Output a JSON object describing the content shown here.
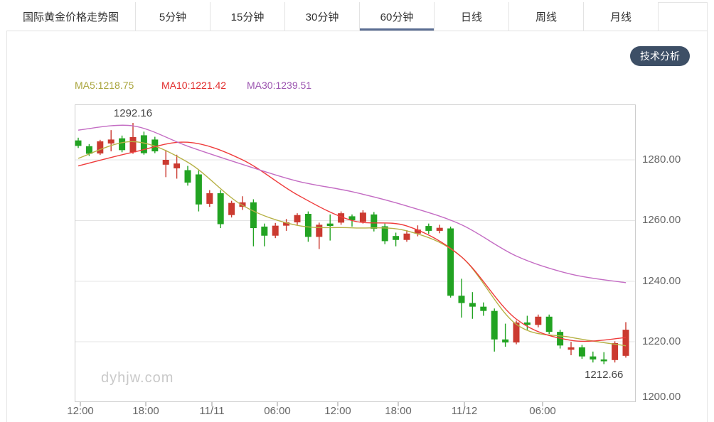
{
  "tabbar": {
    "title_tab": {
      "label": "国际黄金价格走势图"
    },
    "tabs": [
      {
        "label": "5分钟",
        "active": false
      },
      {
        "label": "15分钟",
        "active": false
      },
      {
        "label": "30分钟",
        "active": false
      },
      {
        "label": "60分钟",
        "active": true
      },
      {
        "label": "日线",
        "active": false
      },
      {
        "label": "周线",
        "active": false
      },
      {
        "label": "月线",
        "active": false
      }
    ],
    "active_underline_color": "#5a6d92"
  },
  "toolbar": {
    "analysis_button_label": "技术分析",
    "analysis_button_bg": "#3d4f66"
  },
  "legend": {
    "items": [
      {
        "text": "MA5:1218.75",
        "color": "#a9a43c"
      },
      {
        "text": "MA10:1221.42",
        "color": "#e12b2b"
      },
      {
        "text": "MA30:1239.51",
        "color": "#9c55b0"
      }
    ]
  },
  "watermark": {
    "text": "dyhjw.com"
  },
  "chart_data": {
    "type": "candlestick",
    "title": "国际黄金价格走势图",
    "timeframe": "60分钟",
    "grid": true,
    "colors": {
      "up": "#cb3a30",
      "down": "#22a322",
      "grid": "#e4e4e4",
      "box": "#cccccc",
      "axis_text": "#666666"
    },
    "y_axis": {
      "ticks": [
        {
          "text": "1280.00",
          "price": 1280
        },
        {
          "text": "1260.00",
          "price": 1260
        },
        {
          "text": "1240.00",
          "price": 1240
        },
        {
          "text": "1220.00",
          "price": 1220
        },
        {
          "text": "1200.00",
          "price": 1200
        }
      ],
      "top_price": 1298.3,
      "bottom_price": 1200
    },
    "x_axis": {
      "labels": [
        {
          "text": "12:00",
          "px": 113
        },
        {
          "text": "18:00",
          "px": 205
        },
        {
          "text": "11/11",
          "px": 298
        },
        {
          "text": "06:00",
          "px": 390
        },
        {
          "text": "12:00",
          "px": 475
        },
        {
          "text": "18:00",
          "px": 560
        },
        {
          "text": "11/12",
          "px": 653
        },
        {
          "text": "06:00",
          "px": 763
        }
      ]
    },
    "annotations": [
      {
        "text": "1292.16",
        "candle_index": 5,
        "anchor": "high",
        "price": 1292.16
      },
      {
        "text": "1212.66",
        "candle_index": 48,
        "anchor": "low",
        "price": 1212.66
      }
    ],
    "candles": [
      [
        1286.4,
        1287.3,
        1283.9,
        1284.6
      ],
      [
        1284.5,
        1285.2,
        1281.3,
        1282.0
      ],
      [
        1282.1,
        1286.6,
        1281.6,
        1286.1
      ],
      [
        1285.4,
        1289.8,
        1282.8,
        1286.7
      ],
      [
        1287.1,
        1288.0,
        1282.5,
        1283.2
      ],
      [
        1282.5,
        1292.16,
        1282.0,
        1287.5
      ],
      [
        1288.1,
        1289.3,
        1281.7,
        1282.2
      ],
      [
        1286.7,
        1287.6,
        1282.2,
        1282.8
      ],
      [
        1278.4,
        1283.3,
        1274.3,
        1280.0
      ],
      [
        1277.2,
        1281.7,
        1273.8,
        1278.8
      ],
      [
        1276.6,
        1278.0,
        1271.5,
        1272.5
      ],
      [
        1275.2,
        1276.5,
        1263.0,
        1265.3
      ],
      [
        1265.5,
        1270.0,
        1264.5,
        1269.0
      ],
      [
        1269.0,
        1270.0,
        1257.5,
        1258.8
      ],
      [
        1261.8,
        1266.5,
        1261.0,
        1265.8
      ],
      [
        1264.5,
        1268.0,
        1263.5,
        1266.0
      ],
      [
        1266.0,
        1267.0,
        1251.5,
        1257.5
      ],
      [
        1258.0,
        1259.0,
        1251.5,
        1255.0
      ],
      [
        1255.0,
        1259.2,
        1254.2,
        1258.3
      ],
      [
        1258.3,
        1260.5,
        1256.6,
        1259.4
      ],
      [
        1259.4,
        1262.4,
        1258.6,
        1261.8
      ],
      [
        1262.2,
        1263.0,
        1253.0,
        1254.6
      ],
      [
        1254.6,
        1259.3,
        1250.6,
        1258.6
      ],
      [
        1259.0,
        1262.0,
        1253.4,
        1258.2
      ],
      [
        1259.3,
        1263.0,
        1258.6,
        1262.4
      ],
      [
        1261.4,
        1262.0,
        1258.0,
        1260.1
      ],
      [
        1259.6,
        1263.4,
        1259.0,
        1262.6
      ],
      [
        1262.0,
        1262.8,
        1256.4,
        1257.3
      ],
      [
        1258.1,
        1259.0,
        1252.2,
        1253.2
      ],
      [
        1254.9,
        1256.0,
        1251.5,
        1253.6
      ],
      [
        1253.6,
        1256.8,
        1253.0,
        1255.7
      ],
      [
        1255.7,
        1258.4,
        1254.8,
        1257.0
      ],
      [
        1258.2,
        1259.0,
        1255.6,
        1256.6
      ],
      [
        1256.6,
        1258.6,
        1255.8,
        1257.6
      ],
      [
        1257.4,
        1258.0,
        1234.6,
        1235.2
      ],
      [
        1235.2,
        1240.8,
        1228.0,
        1232.8
      ],
      [
        1232.8,
        1236.4,
        1227.6,
        1231.6
      ],
      [
        1231.6,
        1233.0,
        1228.6,
        1230.2
      ],
      [
        1230.2,
        1231.0,
        1216.8,
        1220.8
      ],
      [
        1220.8,
        1226.0,
        1218.4,
        1219.8
      ],
      [
        1219.8,
        1227.0,
        1219.2,
        1226.4
      ],
      [
        1226.4,
        1228.6,
        1224.0,
        1225.6
      ],
      [
        1225.6,
        1229.0,
        1224.8,
        1228.3
      ],
      [
        1228.3,
        1229.0,
        1222.6,
        1223.3
      ],
      [
        1223.3,
        1224.0,
        1217.8,
        1218.8
      ],
      [
        1217.4,
        1220.0,
        1215.6,
        1218.2
      ],
      [
        1218.2,
        1219.0,
        1214.4,
        1215.2
      ],
      [
        1215.2,
        1216.8,
        1213.2,
        1214.2
      ],
      [
        1214.2,
        1216.6,
        1212.66,
        1213.6
      ],
      [
        1214.0,
        1220.2,
        1213.2,
        1219.6
      ],
      [
        1215.4,
        1226.5,
        1214.8,
        1224.0
      ]
    ],
    "moving_averages": [
      {
        "name": "MA5",
        "color": "#b6b145",
        "index_step": 5,
        "prices": [
          1280.5,
          1286.0,
          1279.2,
          1265.0,
          1258.4,
          1257.6,
          1256.6,
          1248.0,
          1225.8,
          1221.5,
          1218.7
        ]
      },
      {
        "name": "MA10",
        "color": "#ef3b3b",
        "index_step": 5,
        "prices": [
          1278.0,
          1282.5,
          1285.8,
          1280.0,
          1268.5,
          1260.0,
          1258.2,
          1248.0,
          1227.5,
          1220.5,
          1221.4
        ]
      },
      {
        "name": "MA30",
        "color": "#c46dc4",
        "index_step": 5,
        "prices": [
          1289.8,
          1291.2,
          1284.5,
          1278.5,
          1273.0,
          1269.5,
          1264.8,
          1258.6,
          1248.3,
          1242.3,
          1239.5
        ]
      }
    ]
  }
}
